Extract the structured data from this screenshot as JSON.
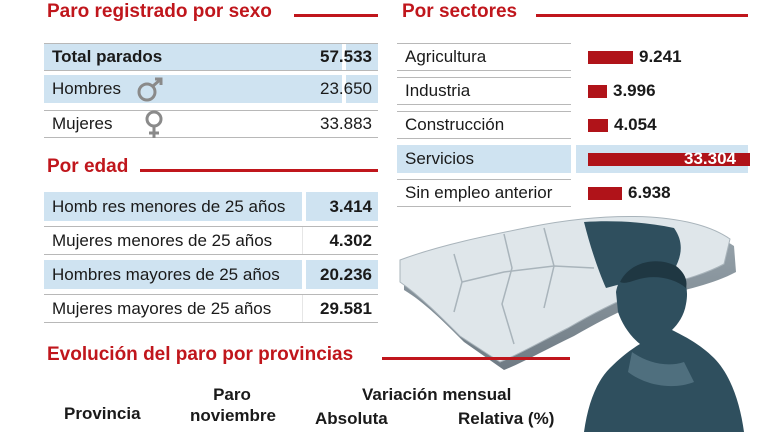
{
  "sexo": {
    "title": "Paro registrado por sexo",
    "rows": [
      {
        "label": "Total parados",
        "value": "57.533"
      },
      {
        "label": "Hombres",
        "value": "23.650"
      },
      {
        "label": "Mujeres",
        "value": "33.883"
      }
    ]
  },
  "sectores": {
    "title": "Por sectores",
    "rows": [
      {
        "label": "Agricultura",
        "value": "9.241"
      },
      {
        "label": "Industria",
        "value": "3.996"
      },
      {
        "label": "Construcción",
        "value": "4.054"
      },
      {
        "label": "Servicios",
        "value": "33.304"
      },
      {
        "label": "Sin empleo anterior",
        "value": "6.938"
      }
    ]
  },
  "edad": {
    "title": "Por edad",
    "rows": [
      {
        "label": "Homb res menores de 25 años",
        "value": "3.414"
      },
      {
        "label": "Mujeres menores de 25 años",
        "value": "4.302"
      },
      {
        "label": "Hombres mayores de 25 años",
        "value": "20.236"
      },
      {
        "label": "Mujeres mayores de 25 años",
        "value": "29.581"
      }
    ]
  },
  "provincias": {
    "title": "Evolución del paro por provincias",
    "col_provincia": "Provincia",
    "col_paro_1": "Paro",
    "col_paro_2": "noviembre",
    "col_variacion": "Variación mensual",
    "col_absoluta": "Absoluta",
    "col_relativa": "Relativa (%)"
  },
  "colors": {
    "accent": "#c0161c",
    "bar": "#b01319",
    "row_blue": "#cfe3f1"
  },
  "chart_data": {
    "type": "bar",
    "title": "Por sectores",
    "categories": [
      "Agricultura",
      "Industria",
      "Construcción",
      "Servicios",
      "Sin empleo anterior"
    ],
    "values": [
      9241,
      3996,
      4054,
      33304,
      6938
    ]
  }
}
